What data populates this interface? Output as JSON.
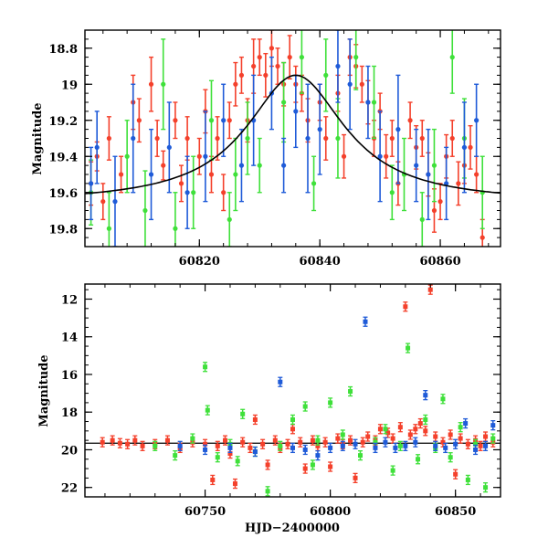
{
  "chart_data": [
    {
      "type": "scatter",
      "panel": "top",
      "ylabel": "Magnitude",
      "xlabel": "",
      "xlim": [
        60801,
        60870
      ],
      "ylim": [
        19.9,
        18.7
      ],
      "y_inverted": true,
      "xticks": [
        60820,
        60840,
        60860
      ],
      "yticks": [
        18.8,
        19,
        19.2,
        19.4,
        19.6,
        19.8
      ],
      "colors": {
        "red": "#f4402b",
        "green": "#3fe03a",
        "blue": "#1f5bd8",
        "model": "#000000"
      },
      "series": [
        {
          "color": "red",
          "points": [
            [
              60802,
              19.55,
              0.12
            ],
            [
              60803,
              19.4,
              0.08
            ],
            [
              60804,
              19.65,
              0.1
            ],
            [
              60805,
              19.3,
              0.12
            ],
            [
              60807,
              19.5,
              0.1
            ],
            [
              60809,
              19.1,
              0.15
            ],
            [
              60810,
              19.2,
              0.12
            ],
            [
              60812,
              19.0,
              0.15
            ],
            [
              60813,
              19.3,
              0.1
            ],
            [
              60814,
              19.45,
              0.08
            ],
            [
              60816,
              19.2,
              0.1
            ],
            [
              60817,
              19.55,
              0.1
            ],
            [
              60818,
              19.3,
              0.12
            ],
            [
              60820,
              19.4,
              0.1
            ],
            [
              60821,
              19.15,
              0.12
            ],
            [
              60822,
              19.5,
              0.1
            ],
            [
              60823,
              19.3,
              0.12
            ],
            [
              60824,
              19.6,
              0.1
            ],
            [
              60825,
              19.2,
              0.1
            ],
            [
              60826,
              19.0,
              0.12
            ],
            [
              60827,
              18.95,
              0.1
            ],
            [
              60828,
              19.2,
              0.12
            ],
            [
              60829,
              18.9,
              0.15
            ],
            [
              60830,
              18.85,
              0.1
            ],
            [
              60831,
              18.95,
              0.12
            ],
            [
              60832,
              18.8,
              0.1
            ],
            [
              60833,
              18.9,
              0.1
            ],
            [
              60834,
              19.0,
              0.12
            ],
            [
              60835,
              18.85,
              0.12
            ],
            [
              60836,
              19.0,
              0.1
            ],
            [
              60837,
              19.05,
              0.1
            ],
            [
              60838,
              19.2,
              0.12
            ],
            [
              60840,
              19.1,
              0.1
            ],
            [
              60841,
              19.3,
              0.12
            ],
            [
              60843,
              19.05,
              0.1
            ],
            [
              60844,
              19.4,
              0.12
            ],
            [
              60845,
              18.85,
              0.1
            ],
            [
              60846,
              18.9,
              0.12
            ],
            [
              60847,
              19.0,
              0.1
            ],
            [
              60848,
              19.1,
              0.12
            ],
            [
              60849,
              19.3,
              0.1
            ],
            [
              60850,
              19.15,
              0.1
            ],
            [
              60851,
              19.4,
              0.12
            ],
            [
              60852,
              19.3,
              0.1
            ],
            [
              60853,
              19.55,
              0.12
            ],
            [
              60855,
              19.2,
              0.1
            ],
            [
              60856,
              19.35,
              0.12
            ],
            [
              60857,
              19.3,
              0.1
            ],
            [
              60858,
              19.5,
              0.12
            ],
            [
              60859,
              19.7,
              0.12
            ],
            [
              60860,
              19.65,
              0.1
            ],
            [
              60861,
              19.4,
              0.12
            ],
            [
              60862,
              19.3,
              0.1
            ],
            [
              60863,
              19.55,
              0.12
            ],
            [
              60864,
              19.45,
              0.1
            ],
            [
              60865,
              19.35,
              0.12
            ],
            [
              60866,
              19.5,
              0.1
            ],
            [
              60867,
              19.85,
              0.1
            ]
          ]
        },
        {
          "color": "green",
          "points": [
            [
              60802,
              19.6,
              0.18
            ],
            [
              60805,
              19.8,
              0.2
            ],
            [
              60808,
              19.4,
              0.2
            ],
            [
              60811,
              19.7,
              0.22
            ],
            [
              60814,
              19.0,
              0.25
            ],
            [
              60816,
              19.8,
              0.2
            ],
            [
              60819,
              19.6,
              0.2
            ],
            [
              60822,
              19.2,
              0.22
            ],
            [
              60825,
              19.75,
              0.15
            ],
            [
              60826,
              19.5,
              0.2
            ],
            [
              60828,
              19.3,
              0.2
            ],
            [
              60830,
              19.45,
              0.15
            ],
            [
              60834,
              19.1,
              0.22
            ],
            [
              60837,
              18.85,
              0.2
            ],
            [
              60839,
              19.55,
              0.15
            ],
            [
              60841,
              18.95,
              0.2
            ],
            [
              60843,
              19.3,
              0.22
            ],
            [
              60846,
              18.85,
              0.18
            ],
            [
              60849,
              19.1,
              0.2
            ],
            [
              60852,
              19.6,
              0.15
            ],
            [
              60854,
              19.5,
              0.2
            ],
            [
              60857,
              19.75,
              0.15
            ],
            [
              60859,
              19.45,
              0.2
            ],
            [
              60862,
              18.85,
              0.2
            ],
            [
              60864,
              19.3,
              0.22
            ],
            [
              60867,
              19.6,
              0.2
            ]
          ]
        },
        {
          "color": "blue",
          "points": [
            [
              60802,
              19.55,
              0.2
            ],
            [
              60803,
              19.35,
              0.2
            ],
            [
              60806,
              19.65,
              0.25
            ],
            [
              60809,
              19.3,
              0.3
            ],
            [
              60812,
              19.5,
              0.25
            ],
            [
              60815,
              19.35,
              0.25
            ],
            [
              60818,
              19.6,
              0.2
            ],
            [
              60821,
              19.4,
              0.25
            ],
            [
              60824,
              19.2,
              0.2
            ],
            [
              60827,
              19.45,
              0.2
            ],
            [
              60829,
              19.2,
              0.25
            ],
            [
              60832,
              19.05,
              0.2
            ],
            [
              60834,
              19.45,
              0.15
            ],
            [
              60836,
              19.15,
              0.2
            ],
            [
              60838,
              19.3,
              0.3
            ],
            [
              60840,
              19.25,
              0.25
            ],
            [
              60843,
              18.9,
              0.2
            ],
            [
              60845,
              19.0,
              0.25
            ],
            [
              60848,
              19.1,
              0.2
            ],
            [
              60850,
              19.4,
              0.25
            ],
            [
              60853,
              19.25,
              0.3
            ],
            [
              60856,
              19.45,
              0.2
            ],
            [
              60858,
              19.5,
              0.25
            ],
            [
              60861,
              19.55,
              0.2
            ],
            [
              60864,
              19.35,
              0.25
            ],
            [
              60866,
              19.2,
              0.2
            ]
          ]
        }
      ],
      "model_curve": {
        "peak_x": 60836,
        "peak_y": 18.95,
        "baseline_y": 19.66,
        "width_days": 10
      }
    },
    {
      "type": "scatter",
      "panel": "bottom",
      "ylabel": "Magnitude",
      "xlabel": "HJD−2400000",
      "xlim": [
        60702,
        60868
      ],
      "ylim": [
        22.5,
        11.2
      ],
      "y_inverted": true,
      "xticks": [
        60750,
        60800,
        60850
      ],
      "yticks": [
        12,
        14,
        16,
        18,
        20,
        22
      ],
      "series": [
        {
          "color": "red",
          "points": [
            [
              60709,
              19.6
            ],
            [
              60713,
              19.5
            ],
            [
              60716,
              19.65
            ],
            [
              60719,
              19.7
            ],
            [
              60722,
              19.5
            ],
            [
              60725,
              19.8
            ],
            [
              60730,
              19.7
            ],
            [
              60735,
              19.5
            ],
            [
              60740,
              19.9
            ],
            [
              60745,
              19.6
            ],
            [
              60750,
              19.7
            ],
            [
              60753,
              21.6
            ],
            [
              60755,
              19.8
            ],
            [
              60758,
              19.5
            ],
            [
              60760,
              20.2
            ],
            [
              60762,
              21.8
            ],
            [
              60765,
              19.6
            ],
            [
              60768,
              19.9
            ],
            [
              60770,
              18.4
            ],
            [
              60773,
              19.7
            ],
            [
              60775,
              20.8
            ],
            [
              60778,
              19.5
            ],
            [
              60780,
              19.9
            ],
            [
              60783,
              19.7
            ],
            [
              60785,
              18.9
            ],
            [
              60788,
              19.6
            ],
            [
              60790,
              21.0
            ],
            [
              60793,
              19.5
            ],
            [
              60795,
              19.8
            ],
            [
              60798,
              19.6
            ],
            [
              60800,
              20.9
            ],
            [
              60803,
              19.4
            ],
            [
              60805,
              19.7
            ],
            [
              60808,
              19.5
            ],
            [
              60810,
              21.5
            ],
            [
              60813,
              19.6
            ],
            [
              60815,
              19.3
            ],
            [
              60818,
              19.5
            ],
            [
              60820,
              18.9
            ],
            [
              60823,
              19.1
            ],
            [
              60825,
              19.4
            ],
            [
              60828,
              18.8
            ],
            [
              60830,
              12.4
            ],
            [
              60832,
              19.2
            ],
            [
              60834,
              18.9
            ],
            [
              60836,
              18.6
            ],
            [
              60838,
              19.0
            ],
            [
              60840,
              11.5
            ],
            [
              60842,
              19.3
            ],
            [
              60845,
              19.6
            ],
            [
              60848,
              19.2
            ],
            [
              60850,
              21.3
            ],
            [
              60852,
              19.4
            ],
            [
              60855,
              19.7
            ],
            [
              60858,
              19.5
            ],
            [
              60860,
              19.8
            ],
            [
              60862,
              19.3
            ],
            [
              60865,
              19.6
            ]
          ]
        },
        {
          "color": "green",
          "points": [
            [
              60730,
              19.8
            ],
            [
              60738,
              20.3
            ],
            [
              60745,
              19.4
            ],
            [
              60750,
              15.6
            ],
            [
              60751,
              17.9
            ],
            [
              60755,
              20.4
            ],
            [
              60760,
              19.7
            ],
            [
              60763,
              20.6
            ],
            [
              60765,
              18.1
            ],
            [
              60770,
              20.1
            ],
            [
              60775,
              22.2
            ],
            [
              60780,
              19.8
            ],
            [
              60785,
              18.4
            ],
            [
              60790,
              17.7
            ],
            [
              60793,
              20.8
            ],
            [
              60795,
              19.5
            ],
            [
              60800,
              17.5
            ],
            [
              60805,
              19.2
            ],
            [
              60808,
              16.9
            ],
            [
              60812,
              20.3
            ],
            [
              60818,
              19.6
            ],
            [
              60822,
              18.9
            ],
            [
              60825,
              21.1
            ],
            [
              60828,
              19.8
            ],
            [
              60831,
              14.6
            ],
            [
              60835,
              20.5
            ],
            [
              60838,
              18.4
            ],
            [
              60842,
              19.9
            ],
            [
              60845,
              17.3
            ],
            [
              60848,
              20.4
            ],
            [
              60852,
              18.8
            ],
            [
              60855,
              21.6
            ],
            [
              60858,
              19.7
            ],
            [
              60862,
              22.0
            ],
            [
              60865,
              19.4
            ]
          ]
        },
        {
          "color": "blue",
          "points": [
            [
              60740,
              19.8
            ],
            [
              60750,
              20.0
            ],
            [
              60760,
              19.9
            ],
            [
              60770,
              20.1
            ],
            [
              60780,
              16.4
            ],
            [
              60785,
              19.9
            ],
            [
              60790,
              20.0
            ],
            [
              60795,
              20.3
            ],
            [
              60800,
              19.9
            ],
            [
              60805,
              19.8
            ],
            [
              60810,
              19.7
            ],
            [
              60814,
              13.2
            ],
            [
              60818,
              19.9
            ],
            [
              60822,
              19.6
            ],
            [
              60826,
              19.9
            ],
            [
              60830,
              19.8
            ],
            [
              60834,
              19.6
            ],
            [
              60838,
              17.1
            ],
            [
              60842,
              19.8
            ],
            [
              60846,
              19.9
            ],
            [
              60850,
              19.7
            ],
            [
              60854,
              18.6
            ],
            [
              60858,
              20.0
            ],
            [
              60862,
              19.8
            ],
            [
              60865,
              18.7
            ]
          ]
        }
      ],
      "baseline_y": 19.65
    }
  ]
}
